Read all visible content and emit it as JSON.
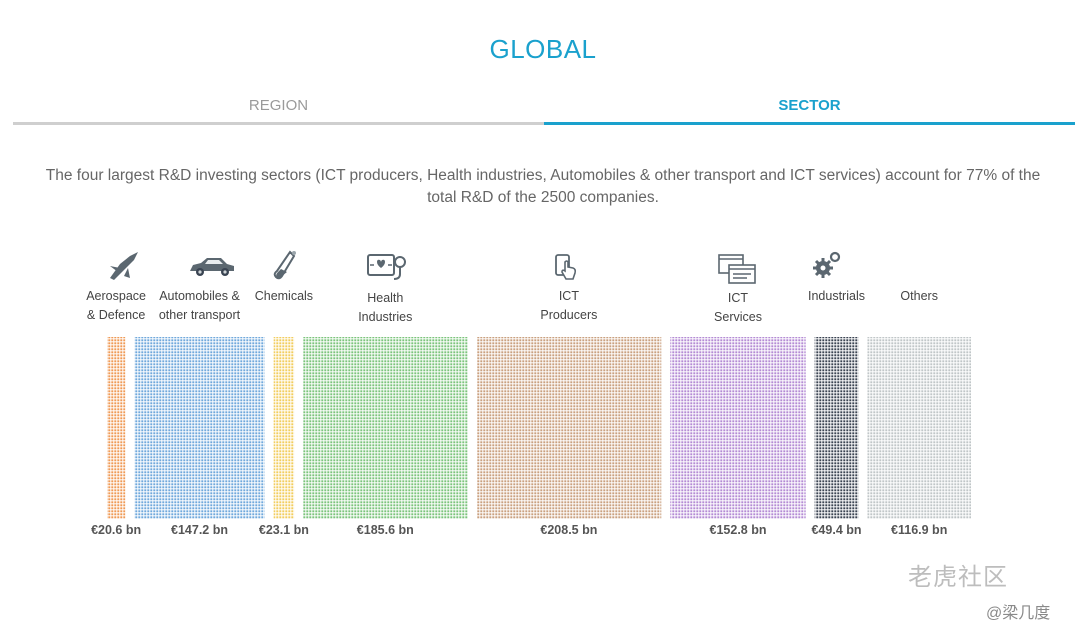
{
  "title": "GLOBAL",
  "tabs": {
    "region": "REGION",
    "sector": "SECTOR"
  },
  "intro": "The four largest R&D investing sectors (ICT producers, Health industries, Automobiles & other transport and ICT services) account for 77% of the total R&D of the 2500 companies.",
  "colors": {
    "accent": "#1aa1cd",
    "tab_inactive": "#cfcfcf"
  },
  "chart_data": {
    "type": "bar",
    "unit": "€ bn",
    "categories": [
      "Aerospace & Defence",
      "Automobiles & other transport",
      "Chemicals",
      "Health Industries",
      "ICT Producers",
      "ICT Services",
      "Industrials",
      "Others"
    ],
    "values": [
      20.6,
      147.2,
      23.1,
      185.6,
      208.5,
      152.8,
      49.4,
      116.9
    ],
    "value_labels": [
      "€20.6 bn",
      "€147.2 bn",
      "€23.1 bn",
      "€185.6 bn",
      "€208.5 bn",
      "€152.8 bn",
      "€49.4 bn",
      "€116.9 bn"
    ],
    "colors": [
      "#ef9a55",
      "#6fa8dc",
      "#f2cd5e",
      "#7bc47b",
      "#c9a07e",
      "#b48ad4",
      "#3a4452",
      "#c0c6c8"
    ],
    "icons": [
      "aeroplane-icon",
      "car-icon",
      "test-tube-icon",
      "heart-monitor-icon",
      "phone-touch-icon",
      "windows-icon",
      "gears-icon",
      ""
    ]
  },
  "sectors": [
    {
      "label_lines": [
        "Aerospace",
        "& Defence"
      ]
    },
    {
      "label_lines": [
        "Automobiles &",
        "other transport"
      ]
    },
    {
      "label_lines": [
        "Chemicals"
      ]
    },
    {
      "label_lines": [
        "Health",
        "Industries"
      ]
    },
    {
      "label_lines": [
        "ICT",
        "Producers"
      ]
    },
    {
      "label_lines": [
        "ICT",
        "Services"
      ]
    },
    {
      "label_lines": [
        "Industrials"
      ]
    },
    {
      "label_lines": [
        "Others"
      ]
    }
  ],
  "watermark": {
    "logo": "老虎社区",
    "user": "@梁几度"
  }
}
